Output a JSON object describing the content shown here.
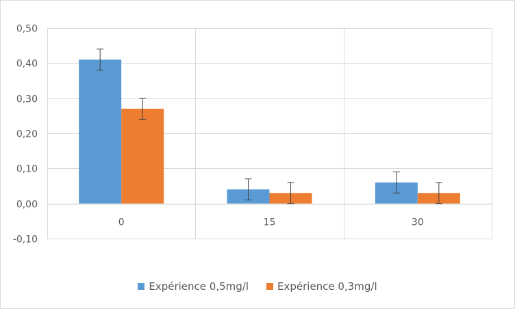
{
  "chart_data": {
    "type": "bar",
    "title": "",
    "xlabel": "",
    "ylabel": "",
    "categories": [
      "0",
      "15",
      "30"
    ],
    "series": [
      {
        "name": "Expérience 0,5mg/l",
        "values": [
          0.41,
          0.04,
          0.06
        ],
        "errors": [
          0.03,
          0.03,
          0.03
        ],
        "color": "#5b9bd5"
      },
      {
        "name": "Expérience 0,3mg/l",
        "values": [
          0.27,
          0.03,
          0.03
        ],
        "errors": [
          0.03,
          0.03,
          0.03
        ],
        "color": "#ed7d31"
      }
    ],
    "ylim": [
      -0.1,
      0.5
    ],
    "yticks": [
      0.5,
      0.4,
      0.3,
      0.2,
      0.1,
      0.0,
      -0.1
    ],
    "ytick_labels": [
      "0,50",
      "0,40",
      "0,30",
      "0,20",
      "0,10",
      "0,00",
      "-0,10"
    ],
    "grid": true,
    "legend_position": "bottom"
  }
}
